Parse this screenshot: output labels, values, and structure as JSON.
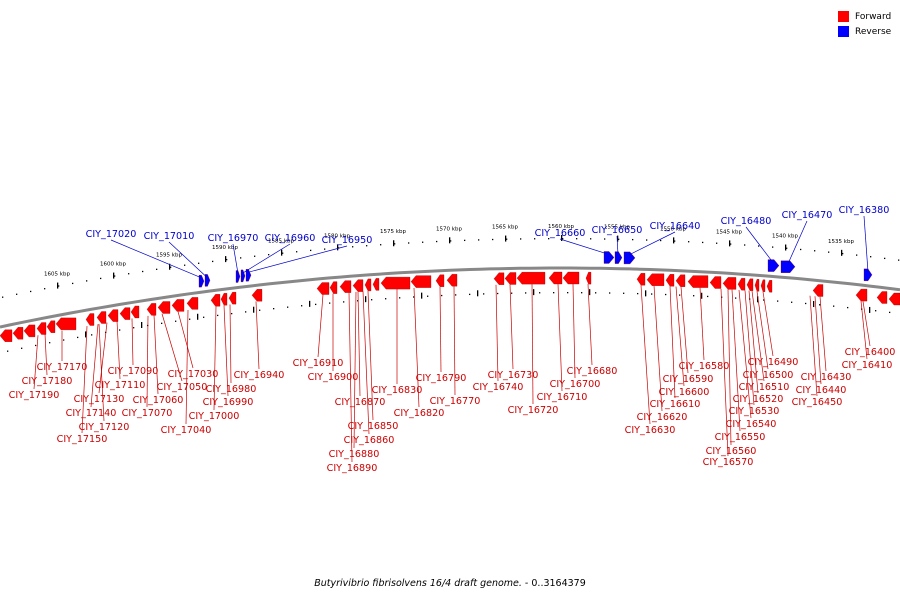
{
  "legend": [
    {
      "label": "Forward",
      "color": "#ff0000"
    },
    {
      "label": "Reverse",
      "color": "#0000ff"
    }
  ],
  "caption": {
    "organism": "Butyrivibrio fibrisolvens 16/4 draft genome.",
    "range": " - 0..3164379"
  },
  "colors": {
    "forward": "#ff0000",
    "reverse": "#0000ff",
    "axis": "#888888",
    "label_forward": "#cc0000",
    "label_reverse": "#0000cc"
  },
  "scale_labels": [
    "1605 kbp",
    "1600 kbp",
    "1595 kbp",
    "1590 kbp",
    "1585 kbp",
    "1580 kbp",
    "1575 kbp",
    "1570 kbp",
    "1565 kbp",
    "1560 kbp",
    "1555 kbp",
    "1550 kbp",
    "1545 kbp",
    "1540 kbp",
    "1535 kbp"
  ],
  "reverse_genes": [
    "CIY_17020",
    "CIY_17010",
    "CIY_16970",
    "CIY_16960",
    "CIY_16950",
    "CIY_16660",
    "CIY_16650",
    "CIY_16640",
    "CIY_16480",
    "CIY_16470",
    "CIY_16380"
  ],
  "forward_genes": [
    "CIY_17170",
    "CIY_17180",
    "CIY_17190",
    "CIY_17090",
    "CIY_17110",
    "CIY_17130",
    "CIY_17140",
    "CIY_17120",
    "CIY_17150",
    "CIY_17070",
    "CIY_17060",
    "CIY_17050",
    "CIY_17030",
    "CIY_17040",
    "CIY_17000",
    "CIY_16990",
    "CIY_16980",
    "CIY_16940",
    "CIY_16910",
    "CIY_16900",
    "CIY_16870",
    "CIY_16850",
    "CIY_16860",
    "CIY_16880",
    "CIY_16890",
    "CIY_16830",
    "CIY_16820",
    "CIY_16790",
    "CIY_16770",
    "CIY_16730",
    "CIY_16740",
    "CIY_16720",
    "CIY_16710",
    "CIY_16700",
    "CIY_16680",
    "CIY_16630",
    "CIY_16620",
    "CIY_16610",
    "CIY_16600",
    "CIY_16590",
    "CIY_16580",
    "CIY_16570",
    "CIY_16560",
    "CIY_16550",
    "CIY_16540",
    "CIY_16530",
    "CIY_16520",
    "CIY_16510",
    "CIY_16500",
    "CIY_16490",
    "CIY_16450",
    "CIY_16440",
    "CIY_16430",
    "CIY_16410",
    "CIY_16400"
  ]
}
